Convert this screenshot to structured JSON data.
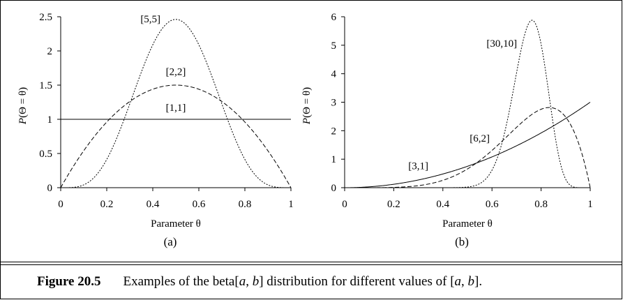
{
  "chart_data": [
    {
      "type": "line",
      "panel_label": "(a)",
      "xlabel": "Parameter θ",
      "ylabel_prefix": "P",
      "ylabel_rest": "(Θ = θ)",
      "xlim": [
        0,
        1
      ],
      "ylim": [
        0,
        2.5
      ],
      "x_ticks": [
        0,
        0.2,
        0.4,
        0.6,
        0.8,
        1
      ],
      "x_tick_labels": [
        "0",
        "0.2",
        "0.4",
        "0.6",
        "0.8",
        "1"
      ],
      "y_ticks": [
        0,
        0.5,
        1,
        1.5,
        2,
        2.5
      ],
      "y_tick_labels": [
        "0",
        "0.5",
        "1",
        "1.5",
        "2",
        "2.5"
      ],
      "series": [
        {
          "name": "[1,1]",
          "a": 1,
          "b": 1,
          "style": "solid"
        },
        {
          "name": "[2,2]",
          "a": 2,
          "b": 2,
          "style": "dashed"
        },
        {
          "name": "[5,5]",
          "a": 5,
          "b": 5,
          "style": "dotted"
        }
      ],
      "series_label_points": [
        {
          "x": 0.5,
          "y": 1.12
        },
        {
          "x": 0.5,
          "y": 1.65
        },
        {
          "x": 0.39,
          "y": 2.42
        }
      ]
    },
    {
      "type": "line",
      "panel_label": "(b)",
      "xlabel": "Parameter θ",
      "ylabel_prefix": "P",
      "ylabel_rest": "(Θ = θ)",
      "xlim": [
        0,
        1
      ],
      "ylim": [
        0,
        6
      ],
      "x_ticks": [
        0,
        0.2,
        0.4,
        0.6,
        0.8,
        1
      ],
      "x_tick_labels": [
        "0",
        "0.2",
        "0.4",
        "0.6",
        "0.8",
        "1"
      ],
      "y_ticks": [
        0,
        1,
        2,
        3,
        4,
        5,
        6
      ],
      "y_tick_labels": [
        "0",
        "1",
        "2",
        "3",
        "4",
        "5",
        "6"
      ],
      "series": [
        {
          "name": "[3,1]",
          "a": 3,
          "b": 1,
          "style": "solid"
        },
        {
          "name": "[6,2]",
          "a": 6,
          "b": 2,
          "style": "dashed"
        },
        {
          "name": "[30,10]",
          "a": 30,
          "b": 10,
          "style": "dotted"
        }
      ],
      "series_label_points": [
        {
          "x": 0.3,
          "y": 0.65
        },
        {
          "x": 0.55,
          "y": 1.62
        },
        {
          "x": 0.64,
          "y": 4.95
        }
      ]
    }
  ],
  "caption": {
    "label": "Figure 20.5",
    "text_before": "Examples of the ",
    "beta_word": "beta",
    "beta_args_open": "[",
    "beta_a": "a",
    "beta_sep": ", ",
    "beta_b": "b",
    "beta_args_close": "]",
    "text_middle": " distribution for different values of ",
    "pair_open": "[",
    "pair_a": "a",
    "pair_sep": ", ",
    "pair_b": "b",
    "pair_close": "].",
    "text_after": ""
  }
}
